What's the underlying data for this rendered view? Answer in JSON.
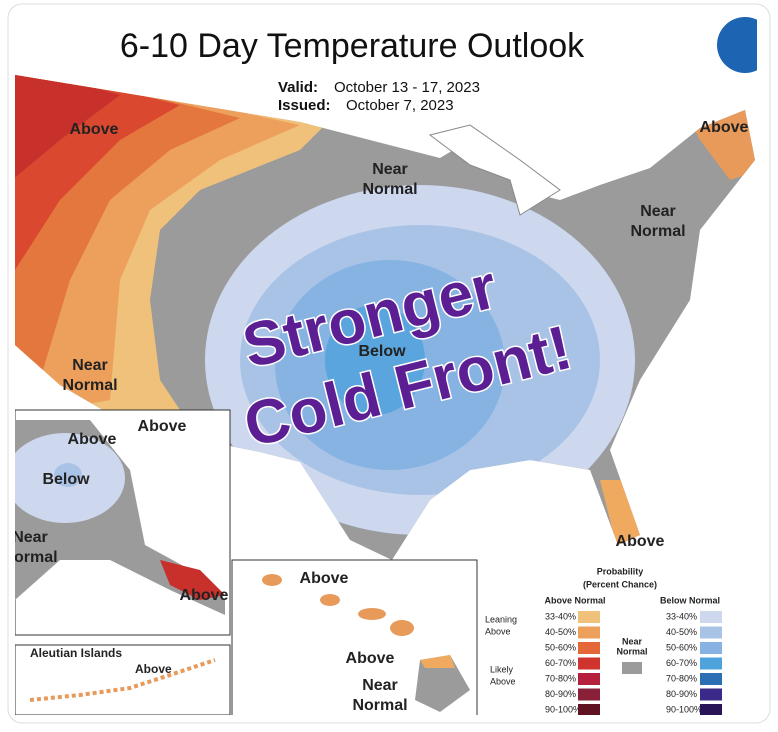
{
  "header": {
    "title": "6-10 Day Temperature Outlook",
    "valid_label": "Valid:",
    "valid": "October 13 - 17, 2023",
    "issued_label": "Issued:",
    "issued": "October 7, 2023"
  },
  "overlay": {
    "line1": "Stronger",
    "line2": "Cold Front!"
  },
  "map_labels": [
    {
      "lines": [
        "Above"
      ]
    },
    {
      "lines": [
        "Above"
      ]
    },
    {
      "lines": [
        "Near",
        "Normal"
      ]
    },
    {
      "lines": [
        "Near",
        "Normal"
      ]
    },
    {
      "lines": [
        "Near",
        "Normal"
      ]
    },
    {
      "lines": [
        "Above"
      ]
    },
    {
      "lines": [
        "Below"
      ]
    },
    {
      "lines": [
        "Above"
      ]
    }
  ],
  "alaska": {
    "labels": [
      {
        "lines": [
          "Above"
        ]
      },
      {
        "lines": [
          "Below"
        ]
      },
      {
        "lines": [
          "Near",
          "Normal"
        ]
      },
      {
        "lines": [
          "Above"
        ]
      }
    ]
  },
  "aleutian": {
    "title": "Aleutian Islands",
    "label": "Above"
  },
  "hawaii": {
    "labels": [
      {
        "lines": [
          "Above"
        ]
      },
      {
        "lines": [
          "Above"
        ]
      },
      {
        "lines": [
          "Near",
          "Normal"
        ]
      }
    ]
  },
  "legend": {
    "title": [
      "Probability",
      "(Percent Chance)"
    ],
    "above_title": "Above Normal",
    "below_title": "Below Normal",
    "leaning_above": [
      "Leaning",
      "Above"
    ],
    "likely_above": [
      "Likely",
      "Above"
    ],
    "near_normal": [
      "Near",
      "Normal"
    ],
    "above": [
      "33-40%",
      "40-50%",
      "50-60%",
      "60-70%",
      "70-80%",
      "80-90%",
      "90-100%"
    ],
    "below": [
      "33-40%",
      "40-50%",
      "50-60%",
      "60-70%",
      "70-80%",
      "80-90%",
      "90-100%"
    ]
  }
}
